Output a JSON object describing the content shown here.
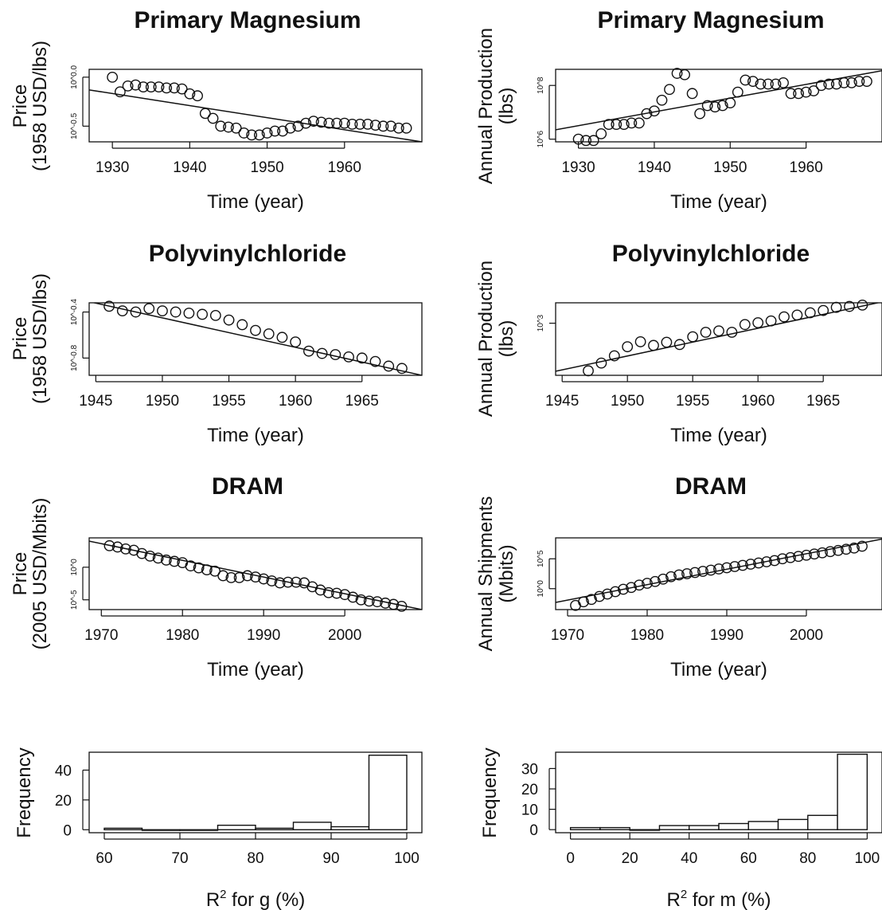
{
  "chart_data": [
    {
      "id": "mg_price",
      "type": "scatter",
      "title": "Primary Magnesium",
      "xlabel": "Time (year)",
      "ylabel": [
        "Price",
        "(1958 USD/lbs)"
      ],
      "y_scale": "log10",
      "xlim": [
        1927,
        1970
      ],
      "ylim": [
        -0.66,
        0.08
      ],
      "x_ticks": [
        1930,
        1940,
        1950,
        1960
      ],
      "x_tick_labels": [
        "1930",
        "1940",
        "1950",
        "1960"
      ],
      "y_ticks": [
        0.0,
        -0.5
      ],
      "y_tick_labels": [
        "10^0.0",
        "10^-0.5"
      ],
      "x": [
        1930,
        1931,
        1932,
        1933,
        1934,
        1935,
        1936,
        1937,
        1938,
        1939,
        1940,
        1941,
        1942,
        1943,
        1944,
        1945,
        1946,
        1947,
        1948,
        1949,
        1950,
        1951,
        1952,
        1953,
        1954,
        1955,
        1956,
        1957,
        1958,
        1959,
        1960,
        1961,
        1962,
        1963,
        1964,
        1965,
        1966,
        1967,
        1968
      ],
      "y": [
        0.0,
        -0.15,
        -0.09,
        -0.08,
        -0.1,
        -0.1,
        -0.1,
        -0.11,
        -0.11,
        -0.12,
        -0.17,
        -0.19,
        -0.37,
        -0.42,
        -0.5,
        -0.51,
        -0.52,
        -0.57,
        -0.59,
        -0.59,
        -0.57,
        -0.55,
        -0.55,
        -0.52,
        -0.5,
        -0.47,
        -0.45,
        -0.46,
        -0.47,
        -0.47,
        -0.47,
        -0.48,
        -0.48,
        -0.48,
        -0.49,
        -0.5,
        -0.5,
        -0.52,
        -0.52
      ],
      "fit_line": {
        "x": [
          1927,
          1970
        ],
        "y": [
          -0.13,
          -0.66
        ]
      }
    },
    {
      "id": "mg_prod",
      "type": "scatter",
      "title": "Primary Magnesium",
      "xlabel": "Time (year)",
      "ylabel": [
        "Annual Production",
        "(lbs)"
      ],
      "y_scale": "log10",
      "xlim": [
        1927,
        1970
      ],
      "ylim": [
        5.9,
        8.6
      ],
      "x_ticks": [
        1930,
        1940,
        1950,
        1960
      ],
      "x_tick_labels": [
        "1930",
        "1940",
        "1950",
        "1960"
      ],
      "y_ticks": [
        8,
        6
      ],
      "y_tick_labels": [
        "10^8",
        "10^6"
      ],
      "x": [
        1930,
        1931,
        1932,
        1933,
        1934,
        1935,
        1936,
        1937,
        1938,
        1939,
        1940,
        1941,
        1942,
        1943,
        1944,
        1945,
        1946,
        1947,
        1948,
        1949,
        1950,
        1951,
        1952,
        1953,
        1954,
        1955,
        1956,
        1957,
        1958,
        1959,
        1960,
        1961,
        1962,
        1963,
        1964,
        1965,
        1966,
        1967,
        1968
      ],
      "y": [
        6.0,
        5.95,
        5.95,
        6.2,
        6.55,
        6.55,
        6.55,
        6.6,
        6.6,
        6.95,
        7.05,
        7.45,
        7.85,
        8.45,
        8.4,
        7.7,
        6.95,
        7.25,
        7.2,
        7.25,
        7.35,
        7.75,
        8.2,
        8.15,
        8.05,
        8.05,
        8.05,
        8.1,
        7.7,
        7.7,
        7.75,
        7.8,
        8.0,
        8.05,
        8.05,
        8.1,
        8.1,
        8.15,
        8.15
      ],
      "fit_line": {
        "x": [
          1927,
          1970
        ],
        "y": [
          6.35,
          8.55
        ]
      }
    },
    {
      "id": "pvc_price",
      "type": "scatter",
      "title": "Polyvinylchloride",
      "xlabel": "Time (year)",
      "ylabel": [
        "Price",
        "(1958 USD/lbs)"
      ],
      "y_scale": "log10",
      "xlim": [
        1944.5,
        1969.5
      ],
      "ylim": [
        -0.95,
        -0.32
      ],
      "x_ticks": [
        1945,
        1950,
        1955,
        1960,
        1965
      ],
      "x_tick_labels": [
        "1945",
        "1950",
        "1955",
        "1960",
        "1965"
      ],
      "y_ticks": [
        -0.4,
        -0.8
      ],
      "y_tick_labels": [
        "10^-0.4",
        "10^-0.8"
      ],
      "x": [
        1946,
        1947,
        1948,
        1949,
        1950,
        1951,
        1952,
        1953,
        1954,
        1955,
        1956,
        1957,
        1958,
        1959,
        1960,
        1961,
        1962,
        1963,
        1964,
        1965,
        1966,
        1967,
        1968
      ],
      "y": [
        -0.35,
        -0.39,
        -0.4,
        -0.37,
        -0.39,
        -0.4,
        -0.41,
        -0.42,
        -0.43,
        -0.47,
        -0.51,
        -0.56,
        -0.59,
        -0.62,
        -0.66,
        -0.74,
        -0.76,
        -0.77,
        -0.79,
        -0.8,
        -0.83,
        -0.87,
        -0.89
      ],
      "fit_line": {
        "x": [
          1944.5,
          1969.5
        ],
        "y": [
          -0.31,
          -0.95
        ]
      }
    },
    {
      "id": "pvc_prod",
      "type": "scatter",
      "title": "Polyvinylchloride",
      "xlabel": "Time (year)",
      "ylabel": [
        "Annual Production",
        "(lbs)"
      ],
      "y_scale": "log10",
      "xlim": [
        1944.5,
        1969.5
      ],
      "ylim": [
        1.85,
        3.45
      ],
      "x_ticks": [
        1945,
        1950,
        1955,
        1960,
        1965
      ],
      "x_tick_labels": [
        "1945",
        "1950",
        "1955",
        "1960",
        "1965"
      ],
      "y_ticks": [
        3
      ],
      "y_tick_labels": [
        "10^3"
      ],
      "x": [
        1947,
        1948,
        1949,
        1950,
        1951,
        1952,
        1953,
        1954,
        1955,
        1956,
        1957,
        1958,
        1959,
        1960,
        1961,
        1962,
        1963,
        1964,
        1965,
        1966,
        1967,
        1968
      ],
      "y": [
        1.95,
        2.12,
        2.28,
        2.48,
        2.59,
        2.51,
        2.58,
        2.53,
        2.7,
        2.8,
        2.83,
        2.8,
        2.97,
        3.01,
        3.05,
        3.14,
        3.18,
        3.23,
        3.28,
        3.35,
        3.37,
        3.4
      ],
      "fit_line": {
        "x": [
          1944.5,
          1969.5
        ],
        "y": [
          1.94,
          3.47
        ]
      }
    },
    {
      "id": "dram_price",
      "type": "scatter",
      "title": "DRAM",
      "xlabel": "Time (year)",
      "ylabel": [
        "Price",
        "(2005 USD/Mbits)"
      ],
      "y_scale": "log10",
      "xlim": [
        1968.5,
        2009.5
      ],
      "ylim": [
        -6.5,
        4.5
      ],
      "x_ticks": [
        1970,
        1980,
        1990,
        2000
      ],
      "x_tick_labels": [
        "1970",
        "1980",
        "1990",
        "2000"
      ],
      "y_ticks": [
        0,
        -5
      ],
      "y_tick_labels": [
        "10^0",
        "10^-5"
      ],
      "x": [
        1971,
        1972,
        1973,
        1974,
        1975,
        1976,
        1977,
        1978,
        1979,
        1980,
        1981,
        1982,
        1983,
        1984,
        1985,
        1986,
        1987,
        1988,
        1989,
        1990,
        1991,
        1992,
        1993,
        1994,
        1995,
        1996,
        1997,
        1998,
        1999,
        2000,
        2001,
        2002,
        2003,
        2004,
        2005,
        2006,
        2007
      ],
      "y": [
        3.3,
        3.1,
        2.8,
        2.6,
        2.1,
        1.7,
        1.4,
        1.1,
        0.9,
        0.7,
        0.2,
        -0.1,
        -0.4,
        -0.6,
        -1.3,
        -1.6,
        -1.6,
        -1.3,
        -1.5,
        -1.8,
        -2.1,
        -2.4,
        -2.3,
        -2.3,
        -2.4,
        -3.0,
        -3.5,
        -3.9,
        -4.0,
        -4.2,
        -4.6,
        -5.0,
        -5.2,
        -5.3,
        -5.5,
        -5.7,
        -6.0
      ],
      "fit_line": {
        "x": [
          1968.5,
          2009.5
        ],
        "y": [
          4.0,
          -6.5
        ]
      }
    },
    {
      "id": "dram_ship",
      "type": "scatter",
      "title": "DRAM",
      "xlabel": "Time (year)",
      "ylabel": [
        "Annual Shipments",
        "(Mbits)"
      ],
      "y_scale": "log10",
      "xlim": [
        1968.5,
        2009.5
      ],
      "ylim": [
        -3.5,
        8.5
      ],
      "x_ticks": [
        1970,
        1980,
        1990,
        2000
      ],
      "x_tick_labels": [
        "1970",
        "1980",
        "1990",
        "2000"
      ],
      "y_ticks": [
        5,
        0
      ],
      "y_tick_labels": [
        "10^5",
        "10^0"
      ],
      "x": [
        1971,
        1972,
        1973,
        1974,
        1975,
        1976,
        1977,
        1978,
        1979,
        1980,
        1981,
        1982,
        1983,
        1984,
        1985,
        1986,
        1987,
        1988,
        1989,
        1990,
        1991,
        1992,
        1993,
        1994,
        1995,
        1996,
        1997,
        1998,
        1999,
        2000,
        2001,
        2002,
        2003,
        2004,
        2005,
        2006,
        2007
      ],
      "y": [
        -2.8,
        -2.2,
        -1.8,
        -1.3,
        -0.9,
        -0.5,
        -0.1,
        0.2,
        0.6,
        0.9,
        1.2,
        1.6,
        2.0,
        2.3,
        2.5,
        2.7,
        2.9,
        3.1,
        3.3,
        3.5,
        3.7,
        3.9,
        4.1,
        4.3,
        4.5,
        4.7,
        5.0,
        5.2,
        5.4,
        5.6,
        5.8,
        6.0,
        6.2,
        6.4,
        6.6,
        6.8,
        7.1
      ],
      "fit_line": {
        "x": [
          1968.5,
          2009.5
        ],
        "y": [
          -2.3,
          8.3
        ]
      }
    },
    {
      "id": "hist_g",
      "type": "bar",
      "xlabel": "R² for g (%)",
      "xlabel_base": "R",
      "xlabel_sup": "2",
      "xlabel_rest": " for g (%)",
      "ylabel": [
        "Frequency"
      ],
      "xlim": [
        58,
        102
      ],
      "ylim": [
        -2,
        52
      ],
      "x_ticks": [
        60,
        70,
        80,
        90,
        100
      ],
      "x_tick_labels": [
        "60",
        "70",
        "80",
        "90",
        "100"
      ],
      "y_ticks": [
        0,
        20,
        40
      ],
      "y_tick_labels": [
        "0",
        "20",
        "40"
      ],
      "bins": [
        [
          60,
          65
        ],
        [
          65,
          70
        ],
        [
          70,
          75
        ],
        [
          75,
          80
        ],
        [
          80,
          85
        ],
        [
          85,
          90
        ],
        [
          90,
          95
        ],
        [
          95,
          100
        ]
      ],
      "values": [
        1,
        0,
        0,
        3,
        1,
        5,
        2,
        50
      ]
    },
    {
      "id": "hist_m",
      "type": "bar",
      "xlabel": "R² for m (%)",
      "xlabel_base": "R",
      "xlabel_sup": "2",
      "xlabel_rest": " for m (%)",
      "ylabel": [
        "Frequency"
      ],
      "xlim": [
        -5,
        105
      ],
      "ylim": [
        -1.5,
        38
      ],
      "x_ticks": [
        0,
        20,
        40,
        60,
        80,
        100
      ],
      "x_tick_labels": [
        "0",
        "20",
        "40",
        "60",
        "80",
        "100"
      ],
      "y_ticks": [
        0,
        10,
        20,
        30
      ],
      "y_tick_labels": [
        "0",
        "10",
        "20",
        "30"
      ],
      "bins": [
        [
          0,
          10
        ],
        [
          10,
          20
        ],
        [
          20,
          30
        ],
        [
          30,
          40
        ],
        [
          40,
          50
        ],
        [
          50,
          60
        ],
        [
          60,
          70
        ],
        [
          70,
          80
        ],
        [
          80,
          90
        ],
        [
          90,
          100
        ]
      ],
      "values": [
        1,
        1,
        0,
        2,
        2,
        3,
        4,
        5,
        7,
        37
      ]
    }
  ]
}
